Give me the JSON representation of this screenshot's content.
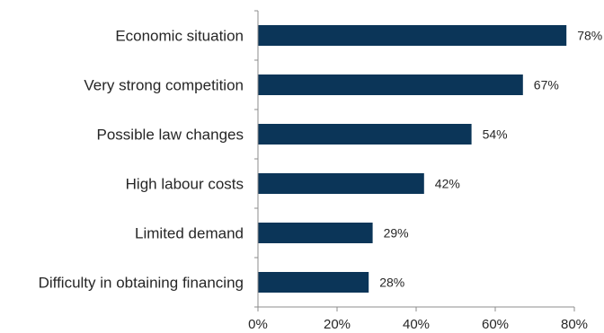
{
  "chart_data": {
    "type": "bar",
    "orientation": "horizontal",
    "categories": [
      "Economic situation",
      "Very strong competition",
      "Possible law changes",
      "High labour costs",
      "Limited demand",
      "Difficulty in obtaining financing"
    ],
    "values": [
      78,
      67,
      54,
      42,
      29,
      28
    ],
    "value_labels": [
      "78%",
      "67%",
      "54%",
      "42%",
      "29%",
      "28%"
    ],
    "x_ticks": [
      "0%",
      "20%",
      "40%",
      "60%",
      "80%"
    ],
    "xlim": [
      0,
      80
    ],
    "grid": false,
    "legend": "none",
    "bar_color": "#0b3558",
    "axis_color": "#8c8c8c"
  }
}
